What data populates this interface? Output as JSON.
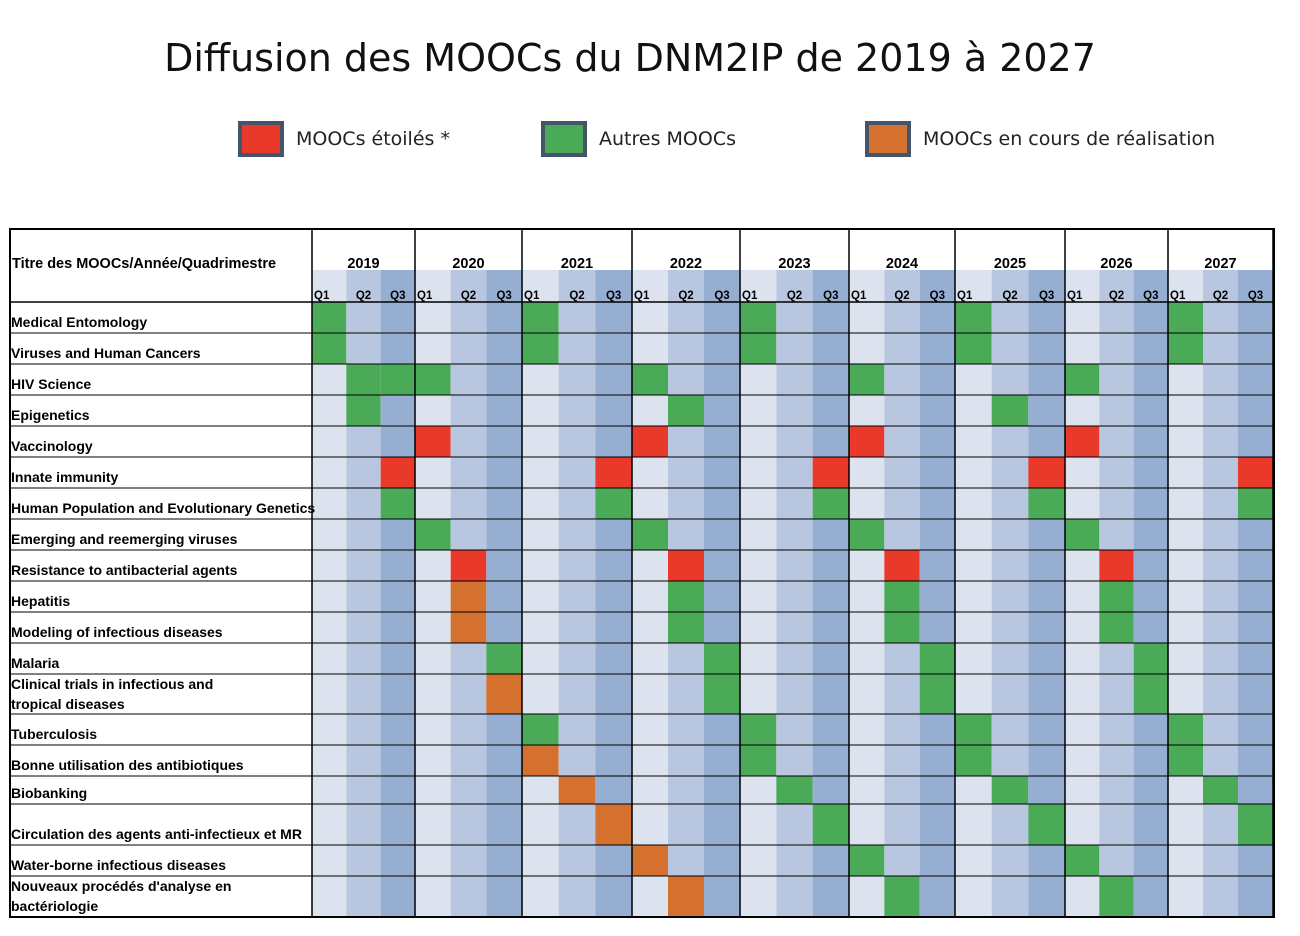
{
  "title": "Diffusion des MOOCs du DNM2IP de 2019 à 2027",
  "legend": [
    {
      "key": "R",
      "label": "MOOCs étoilés *",
      "color": "#e8392a"
    },
    {
      "key": "G",
      "label": "Autres MOOCs",
      "color": "#4aaa57"
    },
    {
      "key": "O",
      "label": "MOOCs en cours de réalisation",
      "color": "#d5712f"
    }
  ],
  "colors": {
    "q1": "#dce3ee",
    "q2": "#b8c7df",
    "q3": "#97aed3",
    "R": "#e8392a",
    "G": "#4aaa57",
    "O": "#d5712f",
    "grid": "#000000"
  },
  "chart_data": {
    "type": "table",
    "corner_label": "Titre des MOOCs/Année/Quadrimestre",
    "years": [
      "2019",
      "2020",
      "2021",
      "2022",
      "2023",
      "2024",
      "2025",
      "2026",
      "2027"
    ],
    "quarters": [
      "Q1",
      "Q2",
      "Q3"
    ],
    "rows": [
      {
        "title": "Medical Entomology",
        "cells": "G..|...|G..|...|G..|...|G..|...|G.."
      },
      {
        "title": "Viruses and Human Cancers",
        "cells": "G..|...|G..|...|G..|...|G..|...|G.."
      },
      {
        "title": "HIV Science",
        "cells": ".GG|G..|...|G..|...|G..|...|G..|..."
      },
      {
        "title": "Epigenetics",
        "cells": ".G.|...|...|.G.|...|...|.G.|...|..."
      },
      {
        "title": "Vaccinology",
        "cells": "...|R..|...|R..|...|R..|...|R..|..."
      },
      {
        "title": "Innate immunity",
        "cells": "..R|...|..R|...|..R|...|..R|...|..R"
      },
      {
        "title": "Human Population and Evolutionary Genetics",
        "cells": "..G|...|..G|...|..G|...|..G|...|..G"
      },
      {
        "title": "Emerging and reemerging viruses",
        "cells": "...|G..|...|G..|...|G..|...|G..|..."
      },
      {
        "title": "Resistance to antibacterial agents",
        "cells": "...|.R.|...|.R.|...|.R.|...|.R.|..."
      },
      {
        "title": "Hepatitis",
        "cells": "...|.O.|...|.G.|...|.G.|...|.G.|..."
      },
      {
        "title": "Modeling of infectious diseases",
        "cells": "...|.O.|...|.G.|...|.G.|...|.G.|..."
      },
      {
        "title": "Malaria",
        "cells": "...|..G|...|..G|...|..G|...|..G|..."
      },
      {
        "title": "Clinical trials in infectious and tropical diseases",
        "cells": "...|..O|...|..G|...|..G|...|..G|..."
      },
      {
        "title": "Tuberculosis",
        "cells": "...|...|G..|...|G..|...|G..|...|G.."
      },
      {
        "title": "Bonne utilisation des antibiotiques",
        "cells": "...|...|O..|...|G..|...|G..|...|G.."
      },
      {
        "title": "Biobanking",
        "cells": "...|...|.O.|...|.G.|...|.G.|...|.G."
      },
      {
        "title": "Circulation des agents anti-infectieux et MR",
        "cells": "...|...|..O|...|..G|...|..G|...|..G"
      },
      {
        "title": "Water-borne infectious diseases",
        "cells": "...|...|...|O..|...|G..|...|G..|..."
      },
      {
        "title": "Nouveaux procédés d'analyse en bactériologie",
        "cells": "...|...|...|.O.|...|.G.|...|.G.|..."
      }
    ]
  }
}
